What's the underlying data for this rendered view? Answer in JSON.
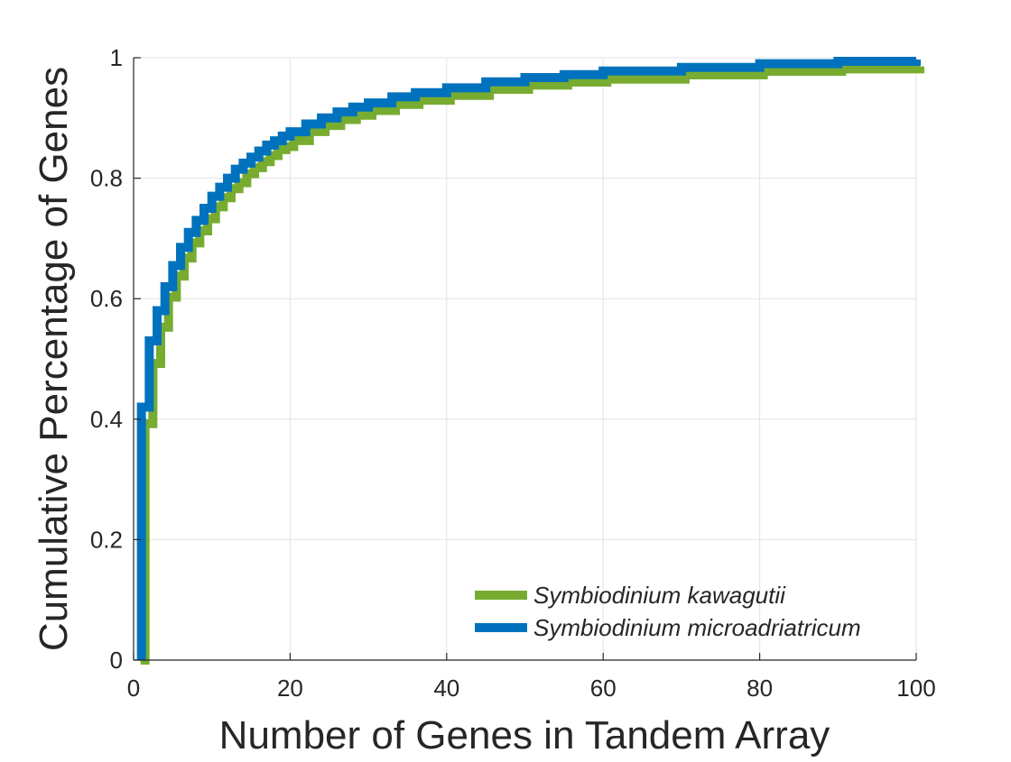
{
  "chart_data": {
    "type": "line",
    "title": "",
    "xlabel": "Number of Genes in Tandem Array",
    "ylabel": "Cumulative Percentage of Genes",
    "xlim": [
      0,
      100
    ],
    "ylim": [
      0,
      1
    ],
    "xticks": [
      0,
      20,
      40,
      60,
      80,
      100
    ],
    "yticks": [
      0,
      0.2,
      0.4,
      0.6,
      0.8,
      1
    ],
    "xtick_labels": [
      "0",
      "20",
      "40",
      "60",
      "80",
      "100"
    ],
    "ytick_labels": [
      "0",
      "0.2",
      "0.4",
      "0.6",
      "0.8",
      "1"
    ],
    "grid": true,
    "legend_position": "bottom-right",
    "step": true,
    "series": [
      {
        "name": "Symbiodinium kawagutii",
        "color": "#77AC30",
        "x": [
          1,
          2,
          3,
          4,
          5,
          6,
          7,
          8,
          9,
          10,
          11,
          12,
          13,
          14,
          15,
          16,
          17,
          18,
          19,
          20,
          22,
          24,
          26,
          28,
          30,
          33,
          36,
          40,
          45,
          50,
          55,
          60,
          70,
          80,
          90,
          100
        ],
        "values": [
          0.4,
          0.5,
          0.56,
          0.61,
          0.645,
          0.675,
          0.7,
          0.72,
          0.74,
          0.76,
          0.775,
          0.79,
          0.8,
          0.815,
          0.825,
          0.835,
          0.845,
          0.855,
          0.86,
          0.87,
          0.885,
          0.895,
          0.905,
          0.912,
          0.92,
          0.93,
          0.937,
          0.945,
          0.955,
          0.962,
          0.967,
          0.972,
          0.979,
          0.985,
          0.989,
          0.993
        ]
      },
      {
        "name": "Symbiodinium microadriatricum",
        "color": "#0072BD",
        "x": [
          1,
          2,
          3,
          4,
          5,
          6,
          7,
          8,
          9,
          10,
          11,
          12,
          13,
          14,
          15,
          16,
          17,
          18,
          19,
          20,
          22,
          24,
          26,
          28,
          30,
          33,
          36,
          40,
          45,
          50,
          55,
          60,
          70,
          80,
          90,
          100
        ],
        "values": [
          0.42,
          0.53,
          0.58,
          0.62,
          0.655,
          0.685,
          0.71,
          0.73,
          0.75,
          0.77,
          0.785,
          0.8,
          0.815,
          0.825,
          0.835,
          0.845,
          0.855,
          0.862,
          0.87,
          0.877,
          0.89,
          0.9,
          0.91,
          0.918,
          0.925,
          0.935,
          0.942,
          0.95,
          0.96,
          0.967,
          0.972,
          0.978,
          0.984,
          0.99,
          0.994,
          0.997
        ]
      }
    ]
  }
}
